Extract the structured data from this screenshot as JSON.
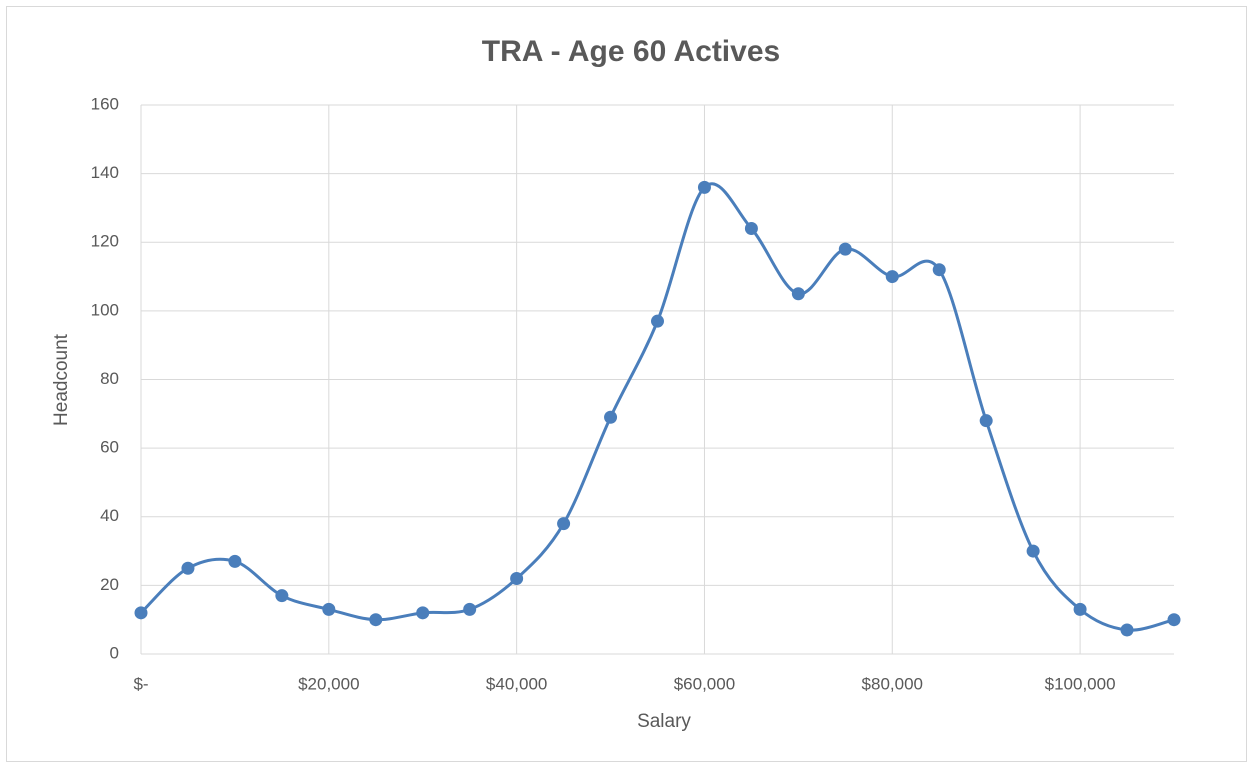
{
  "chart_data": {
    "type": "line",
    "title": "TRA - Age 60 Actives",
    "x_label": "Salary",
    "y_label": "Headcount",
    "x": [
      0,
      5000,
      10000,
      15000,
      20000,
      25000,
      30000,
      35000,
      40000,
      45000,
      50000,
      55000,
      60000,
      65000,
      70000,
      75000,
      80000,
      85000,
      90000,
      95000,
      100000,
      105000,
      110000
    ],
    "series": [
      {
        "name": "Headcount",
        "color": "#4a7ebb",
        "values": [
          12,
          25,
          27,
          17,
          13,
          10,
          12,
          13,
          22,
          38,
          69,
          97,
          136,
          124,
          105,
          118,
          110,
          112,
          68,
          30,
          13,
          7,
          10
        ]
      }
    ],
    "xlim": [
      0,
      110000
    ],
    "xticks": [
      {
        "value": 0,
        "label": "$-"
      },
      {
        "value": 20000,
        "label": "$20,000"
      },
      {
        "value": 40000,
        "label": "$40,000"
      },
      {
        "value": 60000,
        "label": "$60,000"
      },
      {
        "value": 80000,
        "label": "$80,000"
      },
      {
        "value": 100000,
        "label": "$100,000"
      }
    ],
    "ylim": [
      0,
      160
    ],
    "yticks": [
      0,
      20,
      40,
      60,
      80,
      100,
      120,
      140,
      160
    ],
    "grid": true,
    "smooth": true
  }
}
